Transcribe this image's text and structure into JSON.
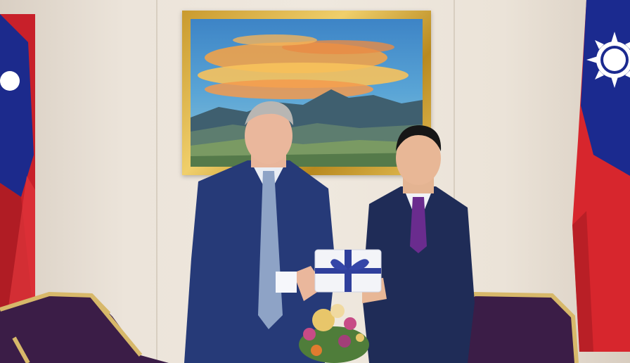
{
  "scene": {
    "subject": "two-men-exchanging-gift",
    "colors": {
      "wall": "#ece4da",
      "frame_gold": "#d2a63d",
      "flag_red": "#d7262d",
      "flag_blue": "#1b2a8f",
      "suit_navy": "#263a78",
      "chair_purple": "#3b1d47"
    }
  }
}
